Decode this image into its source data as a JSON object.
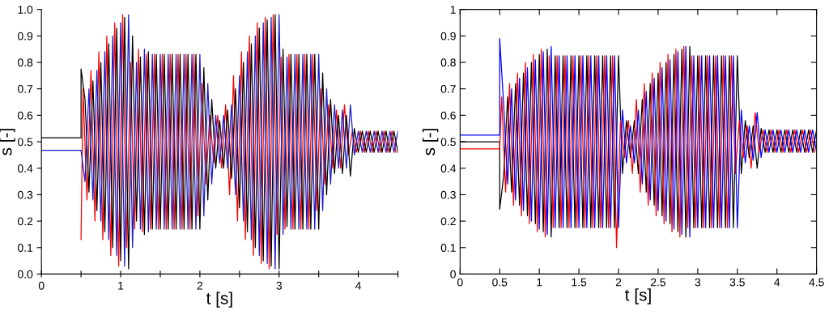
{
  "chart_data": [
    {
      "type": "line",
      "xlabel": "t [s]",
      "ylabel": "s [-]",
      "xlim": [
        0,
        4.5
      ],
      "ylim": [
        0,
        1
      ],
      "xticks": [
        0,
        {
          "value": 0.5,
          "label": null
        },
        1,
        {
          "value": 1.5,
          "label": null
        },
        2,
        {
          "value": 2.5,
          "label": null
        },
        3,
        {
          "value": 3.5,
          "label": null
        },
        4,
        {
          "value": 4.5,
          "label": null
        }
      ],
      "yticks": [
        {
          "value": 0,
          "label": "0.0"
        },
        0.1,
        0.2,
        0.3,
        0.4,
        0.5,
        0.6,
        0.7,
        0.8,
        0.9,
        {
          "value": 1,
          "label": "1.0"
        }
      ],
      "grid": false,
      "marker": "none",
      "line_style": "solid",
      "x": [
        0,
        0.5,
        0.5,
        0.55,
        0.6,
        0.65,
        0.7,
        0.75,
        0.8,
        0.85,
        0.9,
        0.95,
        1.0,
        1.05,
        1.1,
        1.15,
        1.2,
        1.25,
        1.3,
        1.35,
        1.4,
        1.45,
        1.5,
        1.55,
        1.6,
        1.65,
        1.7,
        1.75,
        1.8,
        1.85,
        1.9,
        1.95,
        2.0,
        2.05,
        2.1,
        2.15,
        2.2,
        2.25,
        2.3,
        2.35,
        2.4,
        2.45,
        2.5,
        2.55,
        2.6,
        2.65,
        2.7,
        2.75,
        2.8,
        2.85,
        2.9,
        2.95,
        3.0,
        3.05,
        3.1,
        3.15,
        3.2,
        3.25,
        3.3,
        3.35,
        3.4,
        3.45,
        3.5,
        3.55,
        3.6,
        3.65,
        3.7,
        3.75,
        3.8,
        3.85,
        3.9,
        3.95,
        4.0,
        4.05,
        4.1,
        4.15,
        4.2,
        4.25,
        4.3,
        4.35,
        4.4,
        4.45,
        4.5
      ],
      "series": [
        {
          "color": "#ff0000",
          "x": [
            0.5,
            0.525,
            0.575,
            0.625,
            0.675,
            0.725,
            0.775,
            0.825,
            0.875,
            0.925,
            0.975,
            1.025,
            1.075,
            1.125,
            1.175,
            1.225,
            1.275,
            1.325,
            1.375,
            1.425,
            1.475,
            1.525,
            1.575,
            1.625,
            1.675,
            1.725,
            1.775,
            1.825,
            1.875,
            1.925,
            1.975,
            2.025,
            2.075,
            2.125,
            2.175,
            2.225,
            2.275,
            2.325,
            2.375,
            2.425,
            2.475,
            2.525,
            2.575,
            2.625,
            2.675,
            2.725,
            2.775,
            2.825,
            2.875,
            2.925,
            2.975,
            3.025,
            3.075,
            3.125,
            3.175,
            3.225,
            3.275,
            3.325,
            3.375,
            3.425,
            3.475,
            3.525,
            3.575,
            3.625,
            3.675,
            3.725,
            3.775,
            3.825,
            3.875,
            3.925,
            3.975,
            4.025,
            4.075,
            4.125,
            4.175,
            4.225,
            4.275,
            4.325,
            4.375,
            4.425,
            4.475
          ],
          "values": [
            0.13,
            0.7,
            0.28,
            0.77,
            0.2,
            0.84,
            0.13,
            0.9,
            0.07,
            0.95,
            0.03,
            0.98,
            0.1,
            0.8,
            0.17,
            0.85,
            0.16,
            0.83,
            0.17,
            0.83,
            0.17,
            0.83,
            0.17,
            0.83,
            0.17,
            0.83,
            0.17,
            0.83,
            0.17,
            0.83,
            0.22,
            0.72,
            0.34,
            0.6,
            0.42,
            0.6,
            0.4,
            0.64,
            0.3,
            0.75,
            0.2,
            0.84,
            0.13,
            0.9,
            0.07,
            0.95,
            0.04,
            0.97,
            0.02,
            0.98,
            0.15,
            0.82,
            0.17,
            0.83,
            0.17,
            0.83,
            0.17,
            0.83,
            0.17,
            0.83,
            0.24,
            0.7,
            0.34,
            0.64,
            0.4,
            0.62,
            0.4,
            0.64,
            0.45,
            0.54,
            0.46,
            0.54,
            0.46,
            0.54,
            0.46,
            0.54,
            0.46,
            0.54,
            0.46,
            0.54,
            0.46
          ]
        },
        {
          "color": "#000000",
          "values": [
            0.515,
            0.515,
            0.775,
            0.66,
            0.31,
            0.73,
            0.24,
            0.8,
            0.16,
            0.87,
            0.1,
            0.93,
            0.05,
            0.97,
            0.02,
            0.9,
            0.2,
            0.82,
            0.15,
            0.84,
            0.17,
            0.83,
            0.17,
            0.83,
            0.17,
            0.83,
            0.17,
            0.83,
            0.17,
            0.83,
            0.17,
            0.83,
            0.17,
            0.78,
            0.28,
            0.66,
            0.4,
            0.58,
            0.4,
            0.62,
            0.36,
            0.7,
            0.25,
            0.8,
            0.16,
            0.87,
            0.1,
            0.93,
            0.05,
            0.96,
            0.03,
            0.98,
            0.02,
            0.85,
            0.18,
            0.83,
            0.17,
            0.83,
            0.17,
            0.83,
            0.17,
            0.83,
            0.17,
            0.76,
            0.3,
            0.66,
            0.38,
            0.6,
            0.38,
            0.6,
            0.37,
            0.55,
            0.46,
            0.54,
            0.46,
            0.54,
            0.46,
            0.54,
            0.46,
            0.54,
            0.46,
            0.54,
            0.46
          ]
        },
        {
          "color": "#1a1acc",
          "values": [
            0.468,
            0.468,
            0.468,
            0.35,
            0.7,
            0.28,
            0.77,
            0.2,
            0.84,
            0.13,
            0.9,
            0.07,
            0.95,
            0.03,
            0.98,
            0.1,
            0.8,
            0.17,
            0.85,
            0.16,
            0.83,
            0.17,
            0.83,
            0.17,
            0.83,
            0.17,
            0.83,
            0.17,
            0.83,
            0.17,
            0.83,
            0.17,
            0.83,
            0.22,
            0.72,
            0.34,
            0.6,
            0.42,
            0.6,
            0.4,
            0.64,
            0.3,
            0.75,
            0.2,
            0.84,
            0.13,
            0.9,
            0.07,
            0.95,
            0.04,
            0.97,
            0.02,
            0.98,
            0.15,
            0.82,
            0.17,
            0.83,
            0.17,
            0.83,
            0.17,
            0.83,
            0.17,
            0.83,
            0.24,
            0.7,
            0.34,
            0.64,
            0.4,
            0.62,
            0.4,
            0.64,
            0.45,
            0.54,
            0.46,
            0.54,
            0.46,
            0.54,
            0.46,
            0.54,
            0.46,
            0.54,
            0.46,
            0.54
          ]
        }
      ]
    },
    {
      "type": "line",
      "xlabel": "t [s]",
      "ylabel": "s [-]",
      "xlim": [
        0,
        4.5
      ],
      "ylim": [
        0,
        1
      ],
      "xticks": [
        0,
        0.5,
        1,
        1.5,
        2,
        2.5,
        3,
        3.5,
        4,
        4.5
      ],
      "yticks": [
        0,
        0.1,
        0.2,
        0.3,
        0.4,
        0.5,
        0.6,
        0.7,
        0.8,
        0.9,
        1
      ],
      "grid": false,
      "marker": "none",
      "line_style": "solid",
      "x": [
        0,
        0.5,
        0.5,
        0.55,
        0.6,
        0.65,
        0.7,
        0.75,
        0.8,
        0.85,
        0.9,
        0.95,
        1.0,
        1.05,
        1.1,
        1.15,
        1.2,
        1.25,
        1.3,
        1.35,
        1.4,
        1.45,
        1.5,
        1.55,
        1.6,
        1.65,
        1.7,
        1.75,
        1.8,
        1.85,
        1.9,
        1.95,
        2.0,
        2.05,
        2.1,
        2.15,
        2.2,
        2.25,
        2.3,
        2.35,
        2.4,
        2.45,
        2.5,
        2.55,
        2.6,
        2.65,
        2.7,
        2.75,
        2.8,
        2.85,
        2.9,
        2.95,
        3.0,
        3.05,
        3.1,
        3.15,
        3.2,
        3.25,
        3.3,
        3.35,
        3.4,
        3.45,
        3.5,
        3.55,
        3.6,
        3.65,
        3.7,
        3.75,
        3.8,
        3.85,
        3.9,
        3.95,
        4.0,
        4.05,
        4.1,
        4.15,
        4.2,
        4.25,
        4.3,
        4.35,
        4.4,
        4.45,
        4.5
      ],
      "series": [
        {
          "color": "#000000",
          "values": [
            0.5,
            0.5,
            0.245,
            0.37,
            0.67,
            0.31,
            0.72,
            0.26,
            0.76,
            0.22,
            0.8,
            0.19,
            0.83,
            0.16,
            0.85,
            0.14,
            0.825,
            0.175,
            0.825,
            0.175,
            0.825,
            0.175,
            0.825,
            0.175,
            0.825,
            0.175,
            0.825,
            0.175,
            0.825,
            0.175,
            0.825,
            0.175,
            0.825,
            0.38,
            0.58,
            0.44,
            0.58,
            0.38,
            0.66,
            0.31,
            0.72,
            0.26,
            0.76,
            0.22,
            0.8,
            0.19,
            0.83,
            0.16,
            0.85,
            0.14,
            0.86,
            0.175,
            0.825,
            0.175,
            0.825,
            0.175,
            0.825,
            0.175,
            0.825,
            0.175,
            0.825,
            0.175,
            0.825,
            0.38,
            0.58,
            0.44,
            0.56,
            0.4,
            0.55,
            0.46,
            0.545,
            0.46,
            0.545,
            0.46,
            0.545,
            0.46,
            0.545,
            0.46,
            0.545,
            0.46,
            0.545,
            0.46,
            0.545
          ]
        },
        {
          "color": "#ff0000",
          "x": [
            0,
            0.5,
            0.5,
            0.525,
            0.575,
            0.625,
            0.675,
            0.725,
            0.775,
            0.825,
            0.875,
            0.925,
            0.975,
            1.025,
            1.075,
            1.125,
            1.175,
            1.225,
            1.275,
            1.325,
            1.375,
            1.425,
            1.475,
            1.525,
            1.575,
            1.625,
            1.675,
            1.725,
            1.775,
            1.825,
            1.875,
            1.925,
            1.975,
            2.025,
            2.075,
            2.125,
            2.175,
            2.225,
            2.275,
            2.325,
            2.375,
            2.425,
            2.475,
            2.525,
            2.575,
            2.625,
            2.675,
            2.725,
            2.775,
            2.825,
            2.875,
            2.925,
            2.975,
            3.025,
            3.075,
            3.125,
            3.175,
            3.225,
            3.275,
            3.325,
            3.375,
            3.425,
            3.475,
            3.525,
            3.575,
            3.625,
            3.675,
            3.725,
            3.775,
            3.825,
            3.875,
            3.925,
            3.975,
            4.025,
            4.075,
            4.125,
            4.175,
            4.225,
            4.275,
            4.325,
            4.375,
            4.425,
            4.475
          ],
          "values": [
            0.473,
            0.473,
            0.473,
            0.67,
            0.31,
            0.72,
            0.26,
            0.76,
            0.22,
            0.8,
            0.19,
            0.83,
            0.16,
            0.85,
            0.14,
            0.825,
            0.175,
            0.825,
            0.175,
            0.825,
            0.175,
            0.825,
            0.175,
            0.825,
            0.175,
            0.825,
            0.175,
            0.825,
            0.175,
            0.825,
            0.175,
            0.825,
            0.1,
            0.58,
            0.44,
            0.58,
            0.38,
            0.66,
            0.31,
            0.72,
            0.26,
            0.76,
            0.22,
            0.8,
            0.19,
            0.83,
            0.16,
            0.85,
            0.14,
            0.86,
            0.175,
            0.825,
            0.175,
            0.825,
            0.175,
            0.825,
            0.175,
            0.825,
            0.175,
            0.825,
            0.175,
            0.825,
            0.38,
            0.58,
            0.44,
            0.56,
            0.4,
            0.61,
            0.46,
            0.545,
            0.46,
            0.545,
            0.46,
            0.545,
            0.46,
            0.545,
            0.46,
            0.545,
            0.46,
            0.545,
            0.46,
            0.545,
            0.46
          ]
        },
        {
          "color": "#0000ff",
          "values": [
            0.525,
            0.525,
            0.89,
            0.64,
            0.34,
            0.7,
            0.28,
            0.74,
            0.24,
            0.78,
            0.2,
            0.81,
            0.17,
            0.84,
            0.15,
            0.86,
            0.175,
            0.825,
            0.175,
            0.825,
            0.175,
            0.825,
            0.175,
            0.825,
            0.175,
            0.825,
            0.175,
            0.825,
            0.175,
            0.825,
            0.175,
            0.825,
            0.175,
            0.62,
            0.42,
            0.56,
            0.42,
            0.62,
            0.34,
            0.69,
            0.28,
            0.74,
            0.24,
            0.78,
            0.2,
            0.81,
            0.17,
            0.84,
            0.15,
            0.86,
            0.14,
            0.825,
            0.175,
            0.825,
            0.175,
            0.825,
            0.175,
            0.825,
            0.175,
            0.825,
            0.175,
            0.825,
            0.175,
            0.62,
            0.42,
            0.56,
            0.43,
            0.61,
            0.44,
            0.545,
            0.46,
            0.545,
            0.46,
            0.545,
            0.46,
            0.545,
            0.46,
            0.545,
            0.46,
            0.545,
            0.46,
            0.545,
            0.46
          ]
        }
      ]
    }
  ]
}
